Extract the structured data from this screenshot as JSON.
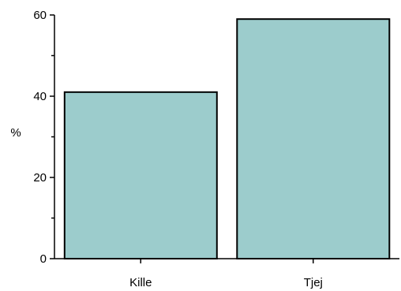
{
  "chart_data": {
    "type": "bar",
    "categories": [
      "Kille",
      "Tjej"
    ],
    "values": [
      41,
      59
    ],
    "ylabel": "%",
    "xlabel": "",
    "ylim": [
      0,
      60
    ],
    "yticks": [
      0,
      20,
      40,
      60
    ],
    "grid": false,
    "colors": {
      "bar_fill": "#9ccccc",
      "bar_stroke": "#000000",
      "axis": "#000000"
    }
  }
}
